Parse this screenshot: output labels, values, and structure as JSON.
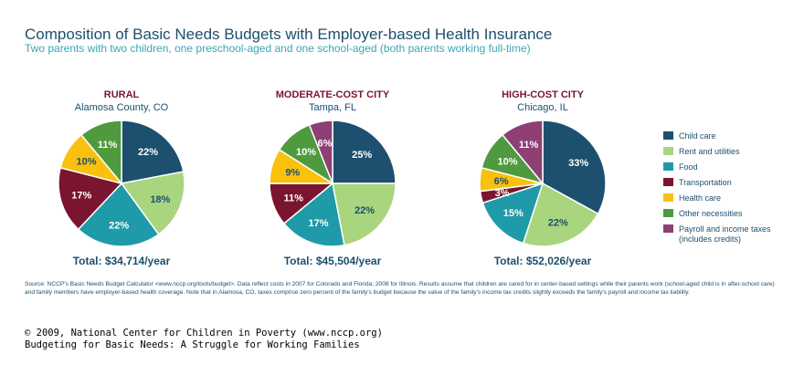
{
  "title": "Composition of Basic Needs Budgets with Employer-based Health Insurance",
  "subtitle": "Two parents with two children, one preschool-aged and one school-aged (both parents working full-time)",
  "colors": {
    "Child care": "#1d4f6e",
    "Rent and utilities": "#a9d57f",
    "Food": "#1f9aa8",
    "Transportation": "#7a1530",
    "Health care": "#f9c10e",
    "Other necessities": "#4f9a3e",
    "Payroll and income taxes": "#8e3f74"
  },
  "legend": [
    {
      "label": "Child care",
      "icon": "square-swatch"
    },
    {
      "label": "Rent and utilities",
      "icon": "square-swatch"
    },
    {
      "label": "Food",
      "icon": "square-swatch"
    },
    {
      "label": "Transportation",
      "icon": "square-swatch"
    },
    {
      "label": "Health care",
      "icon": "square-swatch"
    },
    {
      "label": "Other necessities",
      "icon": "square-swatch"
    },
    {
      "label": "Payroll and income taxes (includes credits)",
      "icon": "square-swatch"
    }
  ],
  "chart_data": [
    {
      "type": "pie",
      "title": "RURAL",
      "subtitle": "Alamosa County, CO",
      "total": "Total: $34,714/year",
      "slices": [
        {
          "label": "Child care",
          "value": 22
        },
        {
          "label": "Rent and utilities",
          "value": 18
        },
        {
          "label": "Food",
          "value": 22
        },
        {
          "label": "Transportation",
          "value": 17
        },
        {
          "label": "Health care",
          "value": 10
        },
        {
          "label": "Other necessities",
          "value": 11
        },
        {
          "label": "Payroll and income taxes",
          "value": 0
        }
      ]
    },
    {
      "type": "pie",
      "title": "MODERATE-COST CITY",
      "subtitle": "Tampa, FL",
      "total": "Total: $45,504/year",
      "slices": [
        {
          "label": "Child care",
          "value": 25
        },
        {
          "label": "Rent and utilities",
          "value": 22
        },
        {
          "label": "Food",
          "value": 17
        },
        {
          "label": "Transportation",
          "value": 11
        },
        {
          "label": "Health care",
          "value": 9
        },
        {
          "label": "Other necessities",
          "value": 10
        },
        {
          "label": "Payroll and income taxes",
          "value": 6
        }
      ]
    },
    {
      "type": "pie",
      "title": "HIGH-COST CITY",
      "subtitle": "Chicago, IL",
      "total": "Total: $52,026/year",
      "slices": [
        {
          "label": "Child care",
          "value": 33
        },
        {
          "label": "Rent and utilities",
          "value": 22
        },
        {
          "label": "Food",
          "value": 15
        },
        {
          "label": "Transportation",
          "value": 3
        },
        {
          "label": "Health care",
          "value": 6
        },
        {
          "label": "Other necessities",
          "value": 10
        },
        {
          "label": "Payroll and income taxes",
          "value": 11
        }
      ]
    }
  ],
  "source": "Source: NCCP's Basic Needs Budget Calculator <www.nccp.org/tools/budget>. Data reflect costs in 2007 for Colorado and Florida; 2008 for Illinois. Results assume that children are cared for in center-based settings while their parents work (school-aged child is in after-school care) and family members have employer-based health coverage. Note that in Alamosa, CO, taxes comprise zero percent of the family's budget because the value of the family's income tax credits slightly exceeds the family's payroll and income tax liability.",
  "copyright_line1": "© 2009, National Center for Children in Poverty (www.nccp.org)",
  "copyright_line2": "Budgeting for Basic Needs: A Struggle for Working Families"
}
